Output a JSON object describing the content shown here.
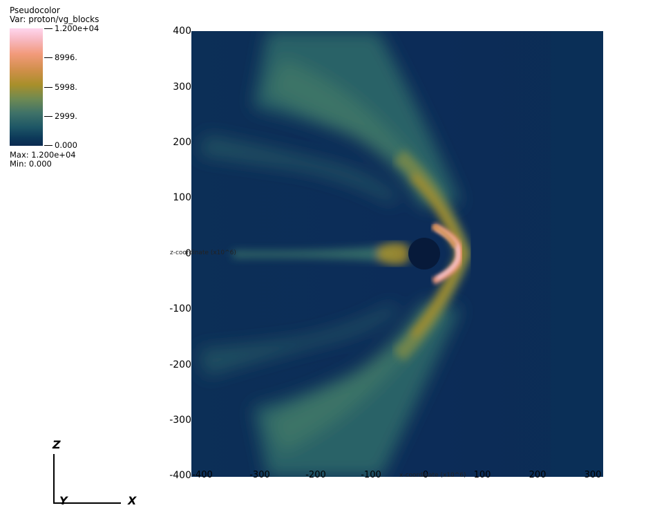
{
  "legend": {
    "plot_type": "Pseudocolor",
    "variable": "Var: proton/vg_blocks",
    "ticks": [
      "1.200e+04",
      "8996.",
      "5998.",
      "2999.",
      "0.000"
    ],
    "max_text": "Max:  1.200e+04",
    "min_text": "Min:  0.000"
  },
  "axes": {
    "y_title": "z-coordinate (x10^6)",
    "x_title": "x-coordinate (x10^6)"
  },
  "triad": {
    "z": "Z",
    "y": "Y",
    "x": "X"
  },
  "chart_data": {
    "type": "heatmap",
    "title": "",
    "variable": "proton/vg_blocks",
    "colormap_range": [
      0,
      12000
    ],
    "x_ticks": [
      "-400",
      "-300",
      "-200",
      "-100",
      "0",
      "100",
      "200",
      "300"
    ],
    "y_ticks": [
      "400",
      "300",
      "200",
      "100",
      "0",
      "-100",
      "-200",
      "-300",
      "-400"
    ],
    "xlim": [
      -400,
      330
    ],
    "ylim": [
      -400,
      400
    ],
    "grid": false,
    "legend_placement": "top-left",
    "colors": {
      "background": "#0b2a55",
      "low_mid": "#3a7a6e",
      "mid": "#a88f2a",
      "high": "#f29a7a",
      "max": "#ffd6ee"
    },
    "features": [
      {
        "name": "planet",
        "x": 0,
        "z": 0,
        "radius": 28,
        "color": "#071a3a"
      },
      {
        "name": "bow_shock",
        "nose_x": 70,
        "value_level": "mid"
      },
      {
        "name": "inner_crescent",
        "x": 35,
        "value_level": "max"
      },
      {
        "name": "tail",
        "x_range": [
          -120,
          -30
        ],
        "z": 0,
        "value_level": "low_mid"
      }
    ]
  }
}
